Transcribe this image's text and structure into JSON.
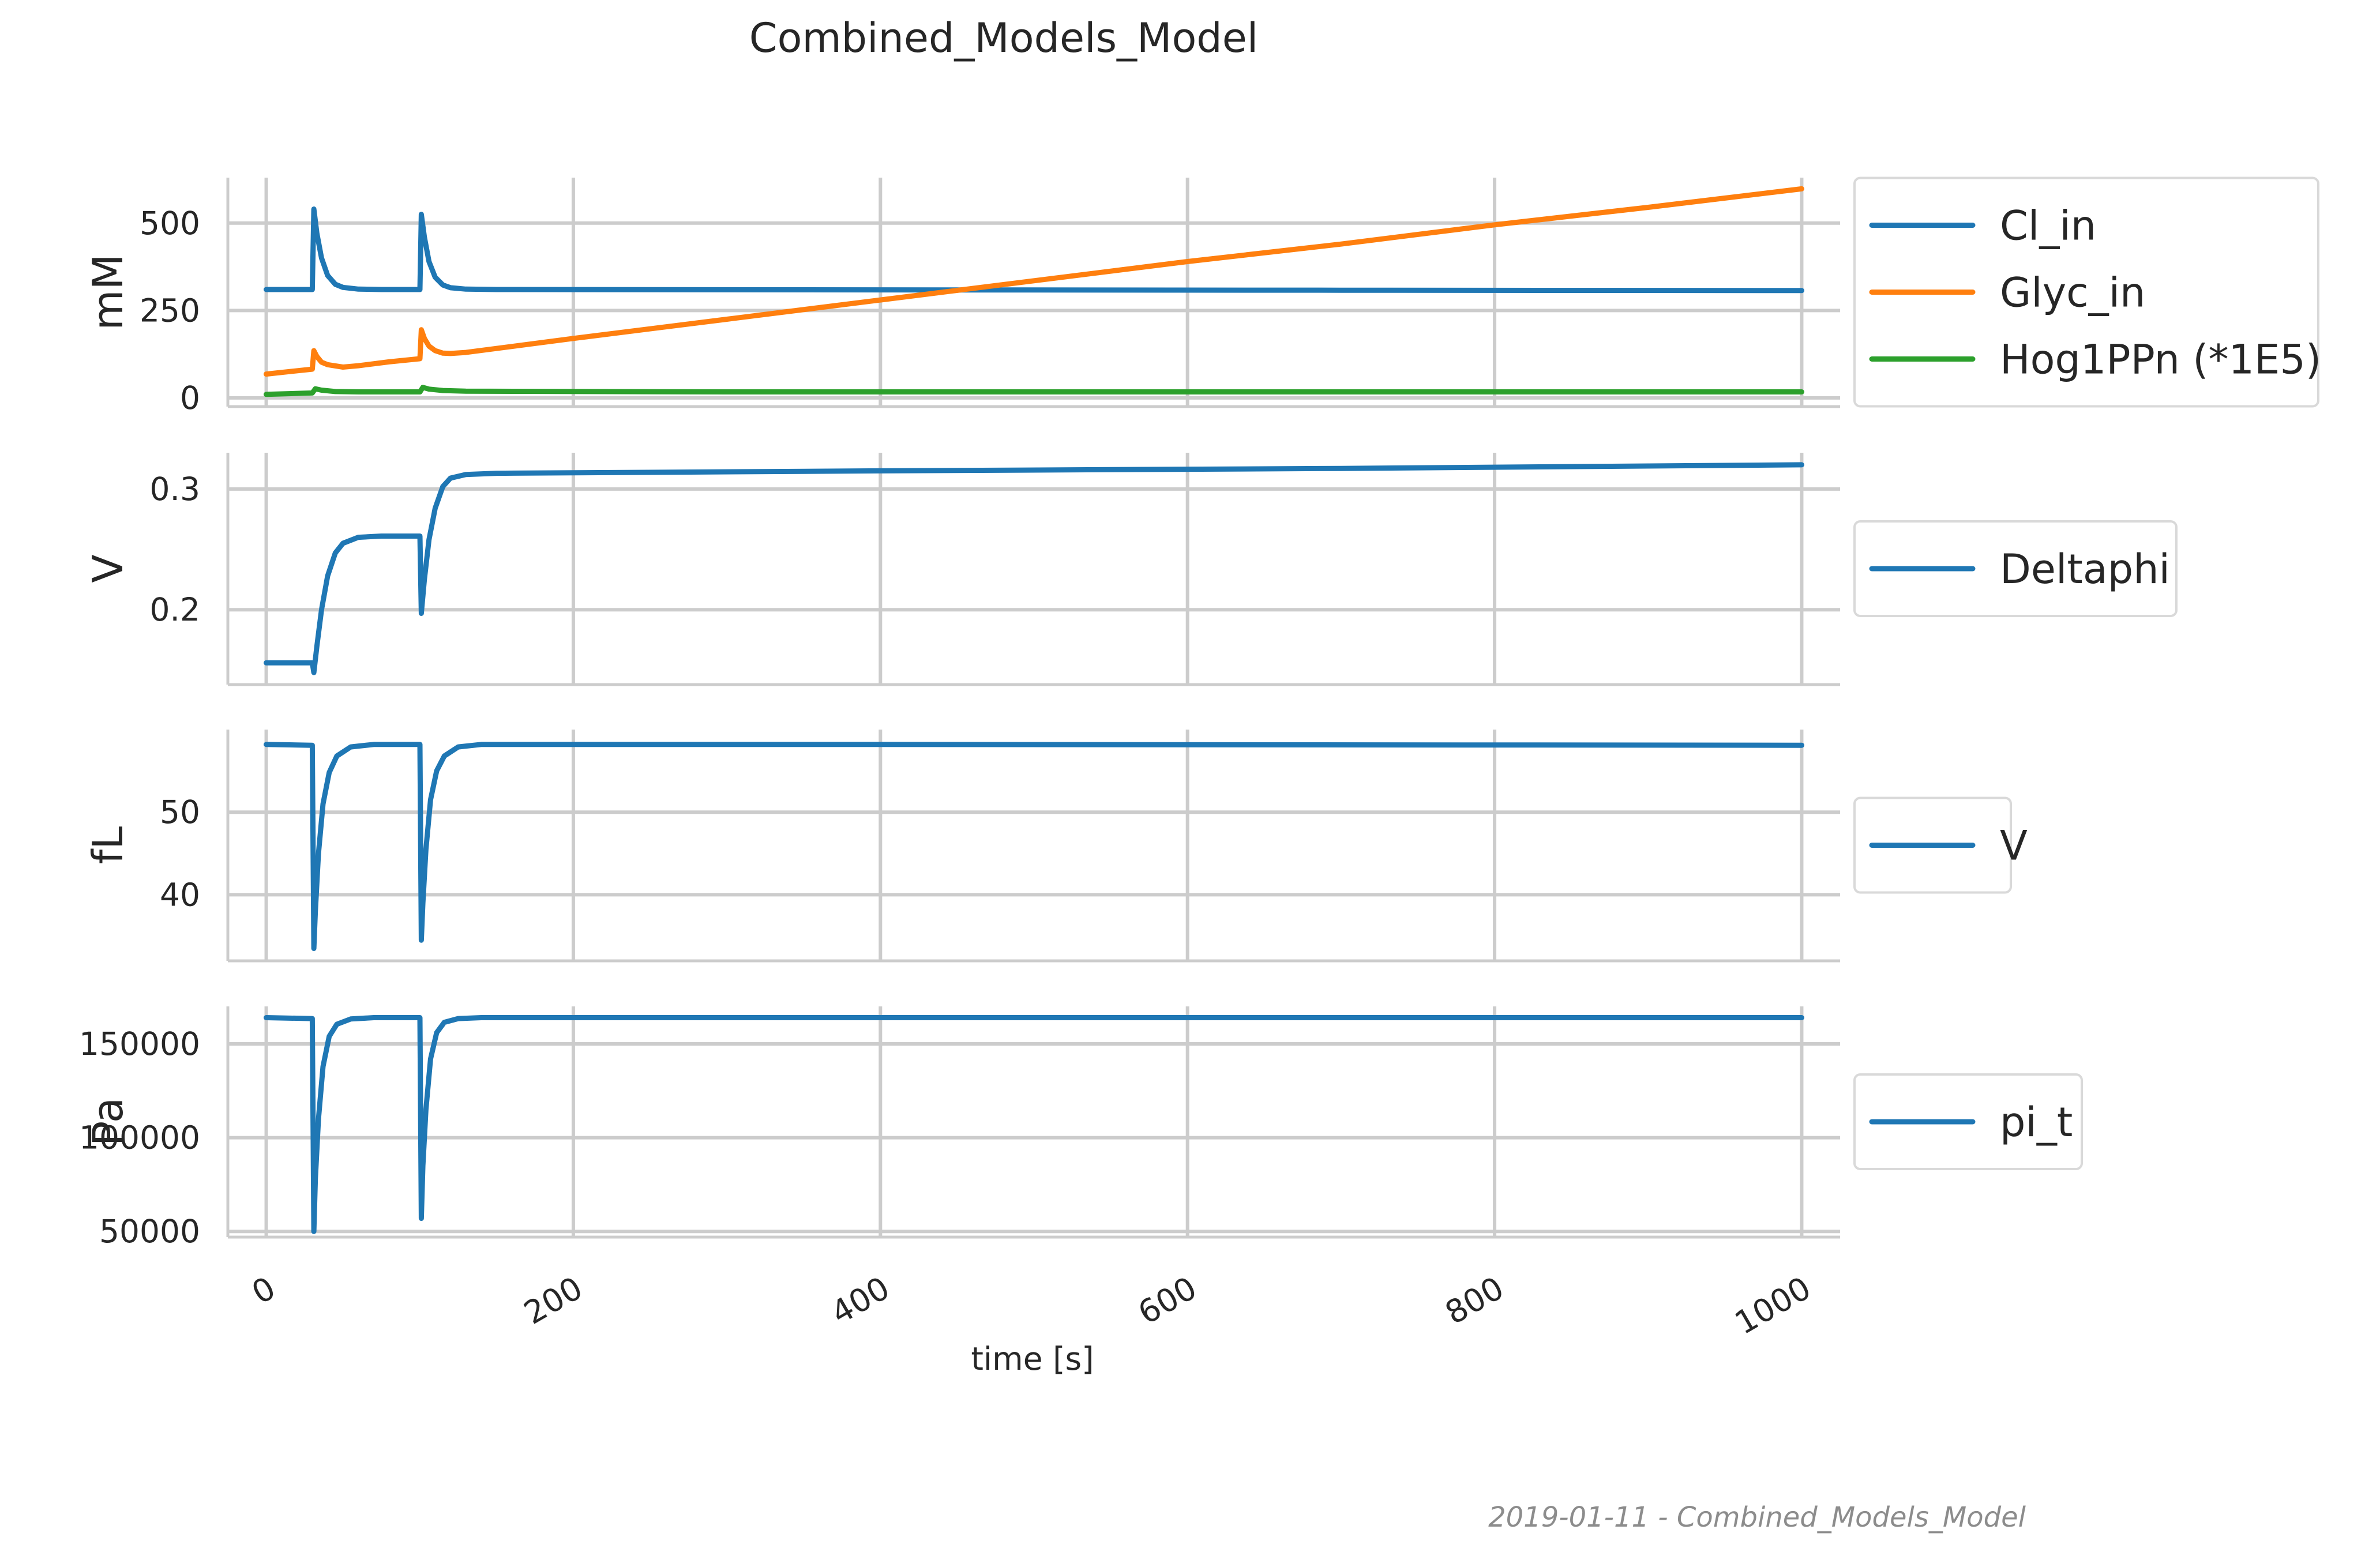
{
  "chart_data": {
    "type": "line",
    "title": "Combined_Models_Model",
    "xlabel": "time [s]",
    "xlim": [
      -25,
      1025
    ],
    "xticks": [
      0,
      200,
      400,
      600,
      800,
      1000
    ],
    "xtick_labels": [
      "0",
      "200",
      "400",
      "600",
      "800",
      "1000"
    ],
    "xtick_rotation_deg": 30,
    "footer": "2019-01-11 - Combined_Models_Model",
    "grid": true,
    "legend_placement": "outside-right",
    "panels": [
      {
        "ylabel": "mM",
        "ylim": [
          -25,
          630
        ],
        "yticks": [
          0,
          250,
          500
        ],
        "ytick_labels": [
          "0",
          "250",
          "500"
        ],
        "series": [
          {
            "name": "Cl_in",
            "color": "#1f77b4",
            "x": [
              0,
              29.9,
              30,
              31,
              33,
              36,
              40,
              45,
              50,
              60,
              75,
              100,
              100.1,
              101,
              103,
              106,
              110,
              115,
              120,
              130,
              150,
              400,
              700,
              1000
            ],
            "y": [
              310,
              310,
              310,
              540,
              470,
              400,
              350,
              325,
              316,
              311,
              310,
              310,
              310,
              525,
              460,
              390,
              345,
              323,
              315,
              311,
              310,
              309,
              308,
              307
            ]
          },
          {
            "name": "Glyc_in",
            "color": "#ff7f0e",
            "x": [
              0,
              29.9,
              30,
              31,
              33,
              36,
              40,
              50,
              60,
              80,
              100,
              100.1,
              101,
              103,
              106,
              110,
              115,
              120,
              130,
              200,
              300,
              400,
              500,
              600,
              700,
              800,
              900,
              1000
            ],
            "y": [
              68,
              82,
              82,
              135,
              118,
              102,
              95,
              88,
              92,
              103,
              112,
              112,
              195,
              170,
              148,
              135,
              128,
              127,
              130,
              170,
              225,
              280,
              335,
              390,
              440,
              495,
              545,
              598
            ]
          },
          {
            "name": "Hog1PPn (*1E5)",
            "color": "#2ca02c",
            "x": [
              0,
              29.9,
              30,
              32,
              36,
              45,
              60,
              100,
              100.1,
              102,
              106,
              115,
              130,
              300,
              600,
              1000
            ],
            "y": [
              10,
              14,
              14,
              26,
              22,
              18,
              17,
              17,
              17,
              30,
              25,
              21,
              19,
              17,
              17,
              17
            ]
          }
        ]
      },
      {
        "ylabel": "V",
        "ylim": [
          0.138,
          0.33
        ],
        "yticks": [
          0.2,
          0.3
        ],
        "ytick_labels": [
          "0.2",
          "0.3"
        ],
        "series": [
          {
            "name": "Deltaphi",
            "color": "#1f77b4",
            "x": [
              0,
              29.9,
              30,
              31,
              33,
              36,
              40,
              45,
              50,
              60,
              75,
              100,
              100.1,
              101,
              103,
              106,
              110,
              115,
              120,
              130,
              150,
              400,
              700,
              1000
            ],
            "y": [
              0.156,
              0.156,
              0.156,
              0.148,
              0.17,
              0.2,
              0.228,
              0.247,
              0.255,
              0.26,
              0.261,
              0.261,
              0.261,
              0.197,
              0.225,
              0.258,
              0.284,
              0.302,
              0.309,
              0.312,
              0.313,
              0.315,
              0.317,
              0.32
            ]
          }
        ]
      },
      {
        "ylabel": "fL",
        "ylim": [
          32,
          60
        ],
        "yticks": [
          40,
          50
        ],
        "ytick_labels": [
          "40",
          "50"
        ],
        "series": [
          {
            "name": "V",
            "color": "#1f77b4",
            "x": [
              0,
              29.9,
              30,
              31,
              32,
              34,
              37,
              41,
              46,
              55,
              70,
              100,
              100.1,
              101,
              102,
              104,
              107,
              111,
              116,
              125,
              140,
              400,
              1000
            ],
            "y": [
              58.2,
              58.1,
              58.1,
              33.5,
              38,
              45,
              51,
              54.8,
              56.8,
              57.9,
              58.2,
              58.2,
              58.2,
              34.5,
              39,
              45.5,
              51.5,
              55,
              56.8,
              57.9,
              58.2,
              58.2,
              58.1
            ]
          }
        ]
      },
      {
        "ylabel": "Pa",
        "ylim": [
          47000,
          170000
        ],
        "yticks": [
          50000,
          100000,
          150000
        ],
        "ytick_labels": [
          "50000",
          "100000",
          "150000"
        ],
        "series": [
          {
            "name": "pi_t",
            "color": "#1f77b4",
            "x": [
              0,
              29.9,
              30,
              31,
              32,
              34,
              37,
              41,
              46,
              55,
              70,
              100,
              100.1,
              101,
              102,
              104,
              107,
              111,
              116,
              125,
              140,
              400,
              1000
            ],
            "y": [
              164000,
              163500,
              163500,
              50000,
              78000,
              110000,
              138000,
              154000,
              160500,
              163300,
              164000,
              164000,
              164000,
              57000,
              85000,
              115000,
              142000,
              156000,
              161500,
              163500,
              164000,
              164000,
              164000
            ]
          }
        ]
      }
    ]
  }
}
